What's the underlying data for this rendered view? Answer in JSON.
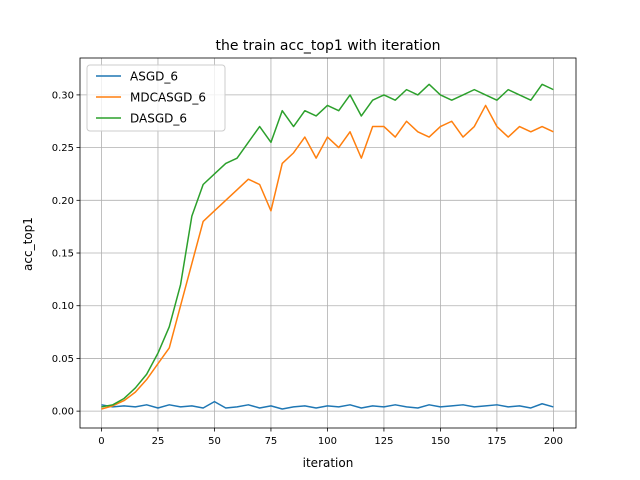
{
  "chart_data": {
    "type": "line",
    "title": "the train acc_top1 with iteration",
    "xlabel": "iteration",
    "ylabel": "acc_top1",
    "xlim": [
      -9.5,
      210
    ],
    "ylim": [
      -0.016,
      0.335
    ],
    "xticks": [
      0,
      25,
      50,
      75,
      100,
      125,
      150,
      175,
      200
    ],
    "yticks": [
      0.0,
      0.05,
      0.1,
      0.15,
      0.2,
      0.25,
      0.3
    ],
    "ytick_labels": [
      "0.00",
      "0.05",
      "0.10",
      "0.15",
      "0.20",
      "0.25",
      "0.30"
    ],
    "grid": true,
    "legend_position": "upper-left",
    "series": [
      {
        "name": "ASGD_6",
        "color": "#1f77b4",
        "x": [
          0,
          5,
          10,
          15,
          20,
          25,
          30,
          35,
          40,
          45,
          50,
          55,
          60,
          65,
          70,
          75,
          80,
          85,
          90,
          95,
          100,
          105,
          110,
          115,
          120,
          125,
          130,
          135,
          140,
          145,
          150,
          155,
          160,
          165,
          170,
          175,
          180,
          185,
          190,
          195,
          200
        ],
        "y": [
          0.006,
          0.004,
          0.005,
          0.004,
          0.006,
          0.003,
          0.006,
          0.004,
          0.005,
          0.003,
          0.009,
          0.003,
          0.004,
          0.006,
          0.003,
          0.005,
          0.002,
          0.004,
          0.005,
          0.003,
          0.005,
          0.004,
          0.006,
          0.003,
          0.005,
          0.004,
          0.006,
          0.004,
          0.003,
          0.006,
          0.004,
          0.005,
          0.006,
          0.004,
          0.005,
          0.006,
          0.004,
          0.005,
          0.003,
          0.007,
          0.004
        ]
      },
      {
        "name": "MDCASGD_6",
        "color": "#ff7f0e",
        "x": [
          0,
          5,
          10,
          15,
          20,
          25,
          30,
          35,
          40,
          45,
          50,
          55,
          60,
          65,
          70,
          75,
          80,
          85,
          90,
          95,
          100,
          105,
          110,
          115,
          120,
          125,
          130,
          135,
          140,
          145,
          150,
          155,
          160,
          165,
          170,
          175,
          180,
          185,
          190,
          195,
          200
        ],
        "y": [
          0.002,
          0.005,
          0.01,
          0.018,
          0.03,
          0.045,
          0.06,
          0.1,
          0.14,
          0.18,
          0.19,
          0.2,
          0.21,
          0.22,
          0.215,
          0.19,
          0.235,
          0.245,
          0.26,
          0.24,
          0.26,
          0.25,
          0.265,
          0.24,
          0.27,
          0.27,
          0.26,
          0.275,
          0.265,
          0.26,
          0.27,
          0.275,
          0.26,
          0.27,
          0.29,
          0.27,
          0.26,
          0.27,
          0.265,
          0.27,
          0.265
        ]
      },
      {
        "name": "DASGD_6",
        "color": "#2ca02c",
        "x": [
          0,
          5,
          10,
          15,
          20,
          25,
          30,
          35,
          40,
          45,
          50,
          55,
          60,
          65,
          70,
          75,
          80,
          85,
          90,
          95,
          100,
          105,
          110,
          115,
          120,
          125,
          130,
          135,
          140,
          145,
          150,
          155,
          160,
          165,
          170,
          175,
          180,
          185,
          190,
          195,
          200
        ],
        "y": [
          0.004,
          0.006,
          0.012,
          0.022,
          0.035,
          0.055,
          0.08,
          0.12,
          0.185,
          0.215,
          0.225,
          0.235,
          0.24,
          0.255,
          0.27,
          0.255,
          0.285,
          0.27,
          0.285,
          0.28,
          0.29,
          0.285,
          0.3,
          0.28,
          0.295,
          0.3,
          0.295,
          0.305,
          0.3,
          0.31,
          0.3,
          0.295,
          0.3,
          0.305,
          0.3,
          0.295,
          0.305,
          0.3,
          0.295,
          0.31,
          0.305
        ]
      }
    ]
  }
}
